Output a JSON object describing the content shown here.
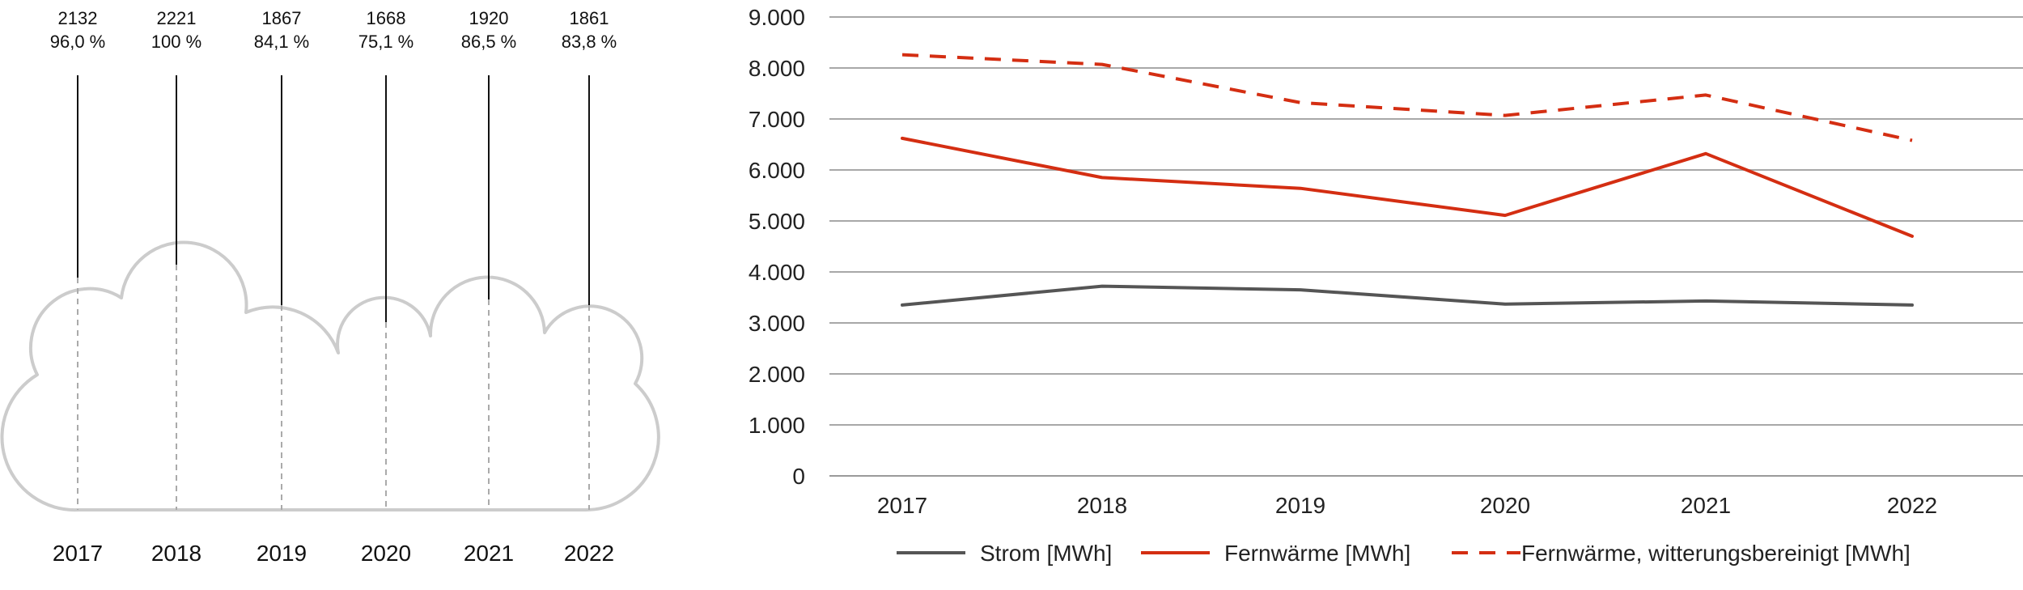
{
  "chart_data": [
    {
      "type": "bar",
      "categories": [
        "2017",
        "2018",
        "2019",
        "2020",
        "2021",
        "2022"
      ],
      "values": [
        2132,
        2221,
        1867,
        1668,
        1920,
        1861
      ],
      "value_labels": [
        "2132",
        "2221",
        "1867",
        "1668",
        "1920",
        "1861"
      ],
      "percent_labels": [
        "96,0 %",
        "100 %",
        "84,1 %",
        "75,1 %",
        "86,5 %",
        "83,8 %"
      ],
      "grid": false,
      "legend": "none"
    },
    {
      "type": "line",
      "categories": [
        "2017",
        "2018",
        "2019",
        "2020",
        "2021",
        "2022"
      ],
      "ylim": [
        0,
        9000
      ],
      "y_ticks": [
        0,
        1000,
        2000,
        3000,
        4000,
        5000,
        6000,
        7000,
        8000,
        9000
      ],
      "y_tick_labels": [
        "0",
        "1.000",
        "2.000",
        "3.000",
        "4.000",
        "5.000",
        "6.000",
        "7.000",
        "8.000",
        "9.000"
      ],
      "grid": true,
      "legend": "bottom",
      "series": [
        {
          "name": "Strom [MWh]",
          "values": [
            3350,
            3720,
            3650,
            3370,
            3430,
            3350
          ],
          "color": "#555555",
          "dash": false
        },
        {
          "name": "Fernwärme [MWh]",
          "values": [
            6620,
            5850,
            5640,
            5110,
            6320,
            4700
          ],
          "color": "#d42e12",
          "dash": false
        },
        {
          "name": "Fernwärme, witterungsbereinigt [MWh]",
          "values": [
            8260,
            8070,
            7320,
            7070,
            7470,
            6580
          ],
          "color": "#d42e12",
          "dash": true
        }
      ]
    }
  ]
}
